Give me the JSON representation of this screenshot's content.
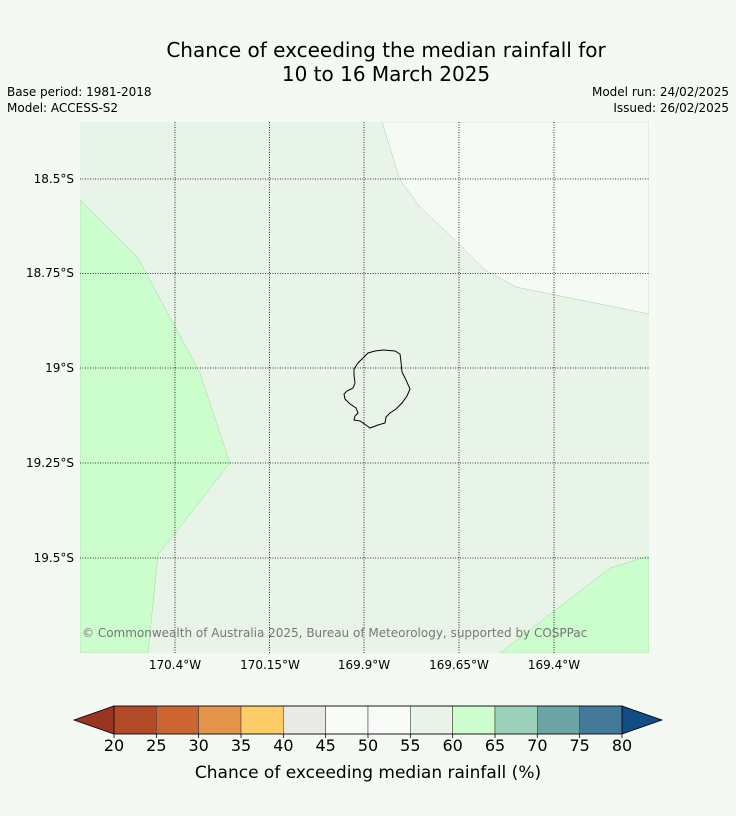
{
  "title": {
    "line1": "Chance of exceeding the median rainfall for",
    "line2": "10 to 16 March 2025"
  },
  "meta": {
    "base_period": "Base period: 1981-2018",
    "model": "Model: ACCESS-S2",
    "model_run": "Model run: 24/02/2025",
    "issued": "Issued: 26/02/2025"
  },
  "map": {
    "latitude_labels": [
      "18.5°S",
      "18.75°S",
      "19°S",
      "19.25°S",
      "19.5°S"
    ],
    "longitude_labels": [
      "170.4°W",
      "170.15°W",
      "169.9°W",
      "169.65°W",
      "169.4°W"
    ],
    "copyright": "© Commonwealth of Australia 2025, Bureau of Meteorology, supported by COSPPac",
    "gridlines": true,
    "regions": [
      {
        "category": "55-60",
        "color": "#e9f4e9"
      },
      {
        "category": "50-55",
        "color": "#f5faf5"
      },
      {
        "category": "60-65",
        "color": "#ccfdcc"
      }
    ]
  },
  "colorbar": {
    "title": "Chance of exceeding median rainfall (%)",
    "ticks": [
      "20",
      "25",
      "30",
      "35",
      "40",
      "45",
      "50",
      "55",
      "60",
      "65",
      "70",
      "75",
      "80"
    ],
    "under_color": "#9a3522",
    "over_color": "#134d85",
    "colors": [
      "#b24a28",
      "#cd6533",
      "#e39448",
      "#fdcc67",
      "#eaeae4",
      "#f8fbf8",
      "#f8fbf8",
      "#e9f4e9",
      "#ccfdcc",
      "#9bd0b9",
      "#6ca4a6",
      "#437a9a"
    ]
  }
}
